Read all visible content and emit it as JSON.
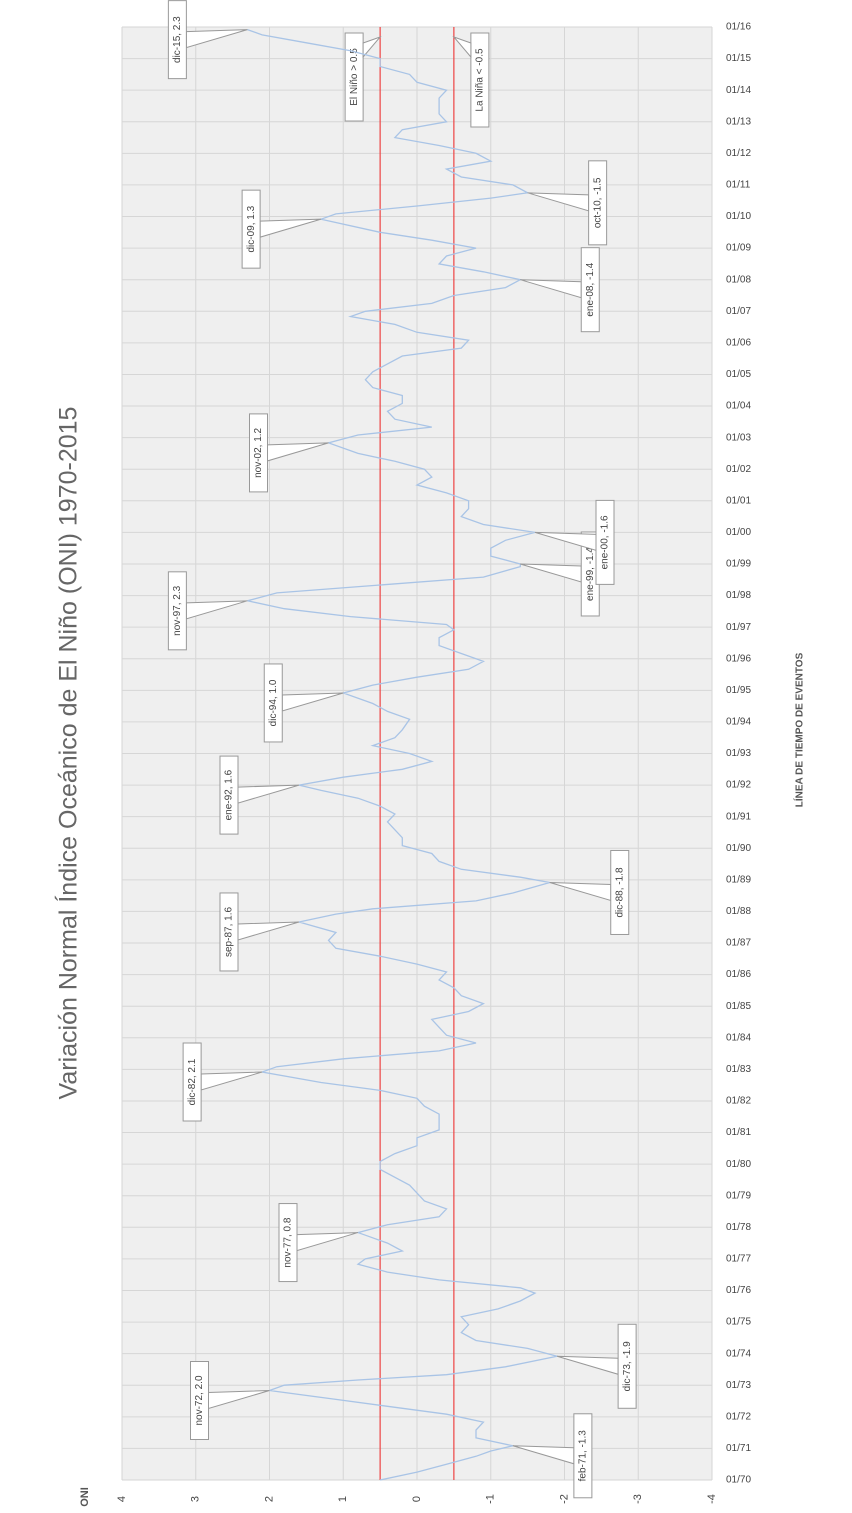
{
  "chart_data": {
    "type": "line",
    "title": "Variación Normal Índice Oceánico de El Niño (ONI) 1970-2015",
    "ylabel": "ONI",
    "xlabel": "LÍNEA DE TIEMPO DE EVENTOS",
    "color": "#a9c4e6",
    "grid": true,
    "ylim": [
      -4,
      4
    ],
    "yticks": [
      4,
      3,
      2,
      1,
      0,
      -1,
      -2,
      -3,
      -4
    ],
    "xlim": [
      "01/70",
      "01/16"
    ],
    "xticks": [
      "01/70",
      "01/71",
      "01/72",
      "01/73",
      "01/74",
      "01/75",
      "01/76",
      "01/77",
      "01/78",
      "01/79",
      "01/80",
      "01/81",
      "01/82",
      "01/83",
      "01/84",
      "01/85",
      "01/86",
      "01/87",
      "01/88",
      "01/89",
      "01/90",
      "01/91",
      "01/92",
      "01/93",
      "01/94",
      "01/95",
      "01/96",
      "01/97",
      "01/98",
      "01/99",
      "01/00",
      "01/01",
      "01/02",
      "01/03",
      "01/04",
      "01/05",
      "01/06",
      "01/07",
      "01/08",
      "01/09",
      "01/10",
      "01/11",
      "01/12",
      "01/13",
      "01/14",
      "01/15",
      "01/16"
    ],
    "x": [
      "01/70",
      "04/70",
      "07/70",
      "10/70",
      "12/70",
      "02/71",
      "05/71",
      "08/71",
      "11/71",
      "02/72",
      "05/72",
      "08/72",
      "11/72",
      "01/73",
      "03/73",
      "05/73",
      "08/73",
      "12/73",
      "03/74",
      "06/74",
      "09/74",
      "12/74",
      "03/75",
      "06/75",
      "09/75",
      "12/75",
      "02/76",
      "05/76",
      "08/76",
      "11/76",
      "01/77",
      "04/77",
      "07/77",
      "10/77",
      "11/77",
      "02/78",
      "05/78",
      "08/78",
      "11/78",
      "02/79",
      "05/79",
      "08/79",
      "11/79",
      "02/80",
      "05/80",
      "08/80",
      "11/80",
      "02/81",
      "05/81",
      "08/81",
      "11/81",
      "02/82",
      "05/82",
      "08/82",
      "12/82",
      "02/83",
      "05/83",
      "08/83",
      "11/83",
      "02/84",
      "05/84",
      "08/84",
      "11/84",
      "02/85",
      "05/85",
      "08/85",
      "11/85",
      "02/86",
      "05/86",
      "08/86",
      "11/86",
      "02/87",
      "05/87",
      "09/87",
      "12/87",
      "02/88",
      "05/88",
      "08/88",
      "12/88",
      "02/89",
      "05/89",
      "08/89",
      "11/89",
      "02/90",
      "05/90",
      "08/90",
      "11/90",
      "02/91",
      "05/91",
      "08/91",
      "11/91",
      "01/92",
      "04/92",
      "07/92",
      "10/92",
      "01/93",
      "04/93",
      "07/93",
      "10/93",
      "02/94",
      "05/94",
      "08/94",
      "12/94",
      "03/95",
      "06/95",
      "09/95",
      "12/95",
      "03/96",
      "06/96",
      "09/96",
      "12/96",
      "02/97",
      "05/97",
      "08/97",
      "11/97",
      "02/98",
      "05/98",
      "08/98",
      "12/98",
      "01/99",
      "04/99",
      "07/99",
      "10/99",
      "01/00",
      "04/00",
      "07/00",
      "10/00",
      "01/01",
      "04/01",
      "07/01",
      "10/01",
      "01/02",
      "04/02",
      "07/02",
      "11/02",
      "02/03",
      "05/03",
      "08/03",
      "11/03",
      "02/04",
      "05/04",
      "08/04",
      "11/04",
      "02/05",
      "05/05",
      "08/05",
      "11/05",
      "02/06",
      "05/06",
      "08/06",
      "11/06",
      "01/07",
      "04/07",
      "07/07",
      "10/07",
      "01/08",
      "04/08",
      "07/08",
      "10/08",
      "01/09",
      "04/09",
      "07/09",
      "12/09",
      "02/10",
      "05/10",
      "08/10",
      "10/10",
      "01/11",
      "04/11",
      "07/11",
      "10/11",
      "01/12",
      "04/12",
      "07/12",
      "10/12",
      "01/13",
      "04/13",
      "07/13",
      "10/13",
      "01/14",
      "04/14",
      "07/14",
      "10/14",
      "01/15",
      "04/15",
      "07/15",
      "10/15",
      "12/15"
    ],
    "values": [
      0.5,
      0.0,
      -0.4,
      -0.8,
      -1.0,
      -1.3,
      -0.8,
      -0.8,
      -0.9,
      -0.4,
      0.4,
      1.2,
      2.0,
      1.8,
      0.8,
      -0.4,
      -1.2,
      -1.9,
      -1.5,
      -0.8,
      -0.6,
      -0.7,
      -0.6,
      -1.1,
      -1.4,
      -1.6,
      -1.4,
      -0.3,
      0.4,
      0.8,
      0.7,
      0.2,
      0.4,
      0.7,
      0.8,
      0.4,
      -0.3,
      -0.4,
      -0.1,
      0.0,
      0.1,
      0.3,
      0.5,
      0.5,
      0.3,
      0.0,
      0.0,
      -0.3,
      -0.3,
      -0.3,
      -0.1,
      0.0,
      0.5,
      1.3,
      2.1,
      1.9,
      1.0,
      -0.3,
      -0.8,
      -0.4,
      -0.3,
      -0.2,
      -0.7,
      -0.9,
      -0.6,
      -0.5,
      -0.3,
      -0.4,
      0.0,
      0.5,
      1.1,
      1.2,
      1.1,
      1.6,
      1.1,
      0.6,
      -0.8,
      -1.3,
      -1.8,
      -1.4,
      -0.6,
      -0.3,
      -0.2,
      0.2,
      0.2,
      0.3,
      0.4,
      0.3,
      0.5,
      0.8,
      1.3,
      1.6,
      1.0,
      0.2,
      -0.2,
      0.1,
      0.6,
      0.3,
      0.2,
      0.1,
      0.4,
      0.6,
      1.0,
      0.6,
      0.0,
      -0.7,
      -0.9,
      -0.6,
      -0.3,
      -0.3,
      -0.5,
      -0.4,
      0.9,
      1.8,
      2.3,
      1.9,
      0.5,
      -0.9,
      -1.4,
      -1.4,
      -1.0,
      -1.0,
      -1.2,
      -1.6,
      -0.9,
      -0.6,
      -0.7,
      -0.7,
      -0.4,
      0.0,
      -0.2,
      -0.1,
      0.3,
      0.8,
      1.2,
      0.8,
      -0.2,
      0.3,
      0.4,
      0.2,
      0.2,
      0.6,
      0.7,
      0.6,
      0.4,
      0.2,
      -0.6,
      -0.7,
      0.0,
      0.3,
      0.9,
      0.7,
      -0.2,
      -0.5,
      -1.2,
      -1.4,
      -0.9,
      -0.3,
      -0.4,
      -0.8,
      -0.2,
      0.5,
      1.3,
      1.1,
      0.0,
      -1.0,
      -1.5,
      -1.3,
      -0.6,
      -0.4,
      -1.0,
      -0.8,
      -0.3,
      0.3,
      0.2,
      -0.4,
      -0.3,
      -0.3,
      -0.3,
      -0.4,
      0.0,
      0.1,
      0.5,
      0.5,
      0.9,
      1.5,
      2.1,
      2.3
    ],
    "reference_lines": [
      {
        "value": 0.5,
        "label": "El Niño > 0.5",
        "color": "#ee4444"
      },
      {
        "value": -0.5,
        "label": "La Niña < -0.5",
        "color": "#ee4444"
      }
    ],
    "annotations": [
      {
        "text": "feb-71, -1.3",
        "x": "02/71",
        "y": -1.3
      },
      {
        "text": "nov-72, 2.0",
        "x": "11/72",
        "y": 2.0
      },
      {
        "text": "dic-73, -1.9",
        "x": "12/73",
        "y": -1.9
      },
      {
        "text": "nov-77, 0.8",
        "x": "11/77",
        "y": 0.8
      },
      {
        "text": "dic-82, 2.1",
        "x": "12/82",
        "y": 2.1
      },
      {
        "text": "sep-87, 1.6",
        "x": "09/87",
        "y": 1.6
      },
      {
        "text": "dic-88, -1.8",
        "x": "12/88",
        "y": -1.8
      },
      {
        "text": "ene-92, 1.6",
        "x": "01/92",
        "y": 1.6
      },
      {
        "text": "dic-94, 1.0",
        "x": "12/94",
        "y": 1.0
      },
      {
        "text": "nov-97, 2.3",
        "x": "11/97",
        "y": 2.3
      },
      {
        "text": "ene-99, -1.4",
        "x": "01/99",
        "y": -1.4
      },
      {
        "text": "ene-00, -1.6",
        "x": "01/00",
        "y": -1.6
      },
      {
        "text": "nov-02, 1.2",
        "x": "11/02",
        "y": 1.2
      },
      {
        "text": "ene-08, -1.4",
        "x": "01/08",
        "y": -1.4
      },
      {
        "text": "dic-09, 1.3",
        "x": "12/09",
        "y": 1.3
      },
      {
        "text": "oct-10, -1.5",
        "x": "10/10",
        "y": -1.5
      },
      {
        "text": "dic-15, 2.3",
        "x": "12/15",
        "y": 2.3
      }
    ]
  }
}
